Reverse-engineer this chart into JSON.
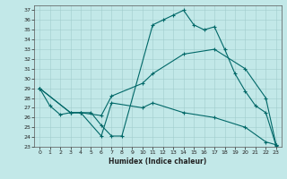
{
  "title": "",
  "xlabel": "Humidex (Indice chaleur)",
  "xlim": [
    -0.5,
    23.5
  ],
  "ylim": [
    23,
    37.5
  ],
  "yticks": [
    23,
    24,
    25,
    26,
    27,
    28,
    29,
    30,
    31,
    32,
    33,
    34,
    35,
    36,
    37
  ],
  "xticks": [
    0,
    1,
    2,
    3,
    4,
    5,
    6,
    7,
    8,
    9,
    10,
    11,
    12,
    13,
    14,
    15,
    16,
    17,
    18,
    19,
    20,
    21,
    22,
    23
  ],
  "bg_color": "#c2e8e8",
  "grid_color": "#a0cccc",
  "line_color": "#006868",
  "lines": [
    {
      "x": [
        0,
        1,
        2,
        3,
        4,
        5,
        6,
        7,
        8,
        11,
        12,
        13,
        14,
        15,
        16,
        17,
        18,
        19,
        20,
        21,
        22,
        23
      ],
      "y": [
        29,
        27.2,
        26.3,
        26.5,
        26.5,
        26.5,
        25.2,
        24.1,
        24.1,
        35.5,
        36.0,
        36.5,
        37.0,
        35.5,
        35.0,
        35.3,
        33.0,
        30.5,
        28.7,
        27.2,
        26.5,
        23.1
      ]
    },
    {
      "x": [
        0,
        3,
        4,
        6,
        7,
        10,
        11,
        14,
        17,
        20,
        22,
        23
      ],
      "y": [
        29,
        26.5,
        26.5,
        26.2,
        28.2,
        29.5,
        30.5,
        32.5,
        33.0,
        31.0,
        28.0,
        23.2
      ]
    },
    {
      "x": [
        0,
        3,
        4,
        6,
        7,
        10,
        11,
        14,
        17,
        20,
        22,
        23
      ],
      "y": [
        29,
        26.5,
        26.5,
        24.1,
        27.5,
        27.0,
        27.5,
        26.5,
        26.0,
        25.0,
        23.5,
        23.2
      ]
    }
  ]
}
